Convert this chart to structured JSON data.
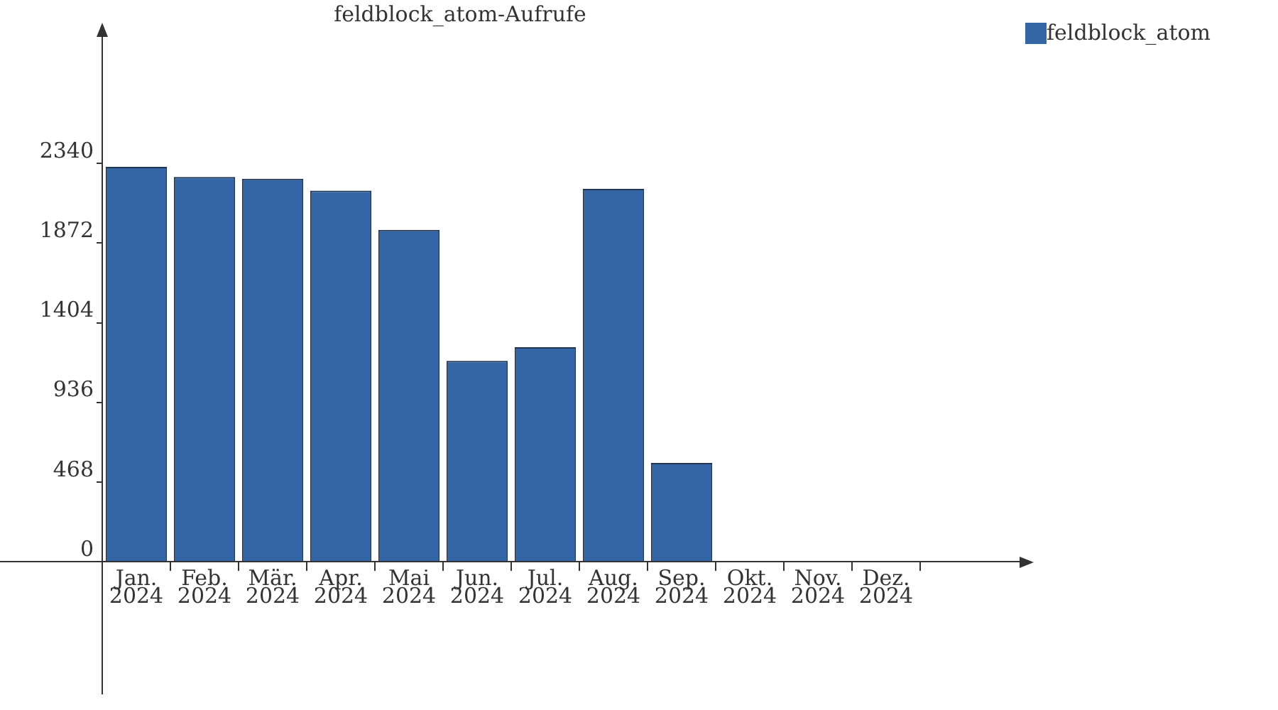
{
  "chart_data": {
    "type": "bar",
    "title": "feldblock_atom-Aufrufe",
    "categories": [
      "Jan. 2024",
      "Feb. 2024",
      "Mär. 2024",
      "Apr. 2024",
      "Mai 2024",
      "Jun. 2024",
      "Jul. 2024",
      "Aug. 2024",
      "Sep. 2024",
      "Okt. 2024",
      "Nov. 2024",
      "Dez. 2024"
    ],
    "series": [
      {
        "name": "feldblock_atom",
        "color": "#3465a4",
        "values": [
          2320,
          2260,
          2250,
          2180,
          1950,
          1180,
          1260,
          2190,
          580,
          0,
          0,
          0
        ]
      }
    ],
    "ylim": [
      -780,
      3100
    ],
    "yticks": [
      0,
      468,
      936,
      1404,
      1872,
      2340
    ],
    "legend": "top right"
  }
}
